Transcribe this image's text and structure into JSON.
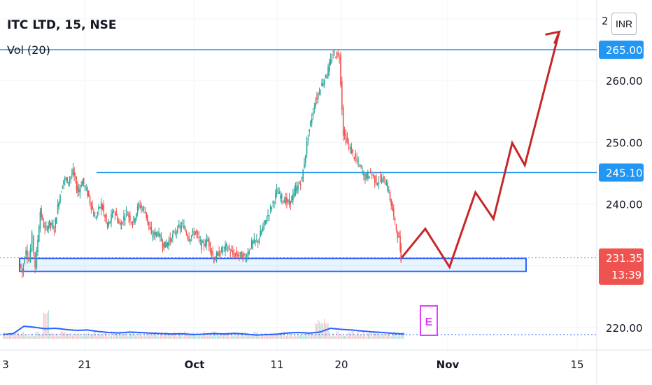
{
  "legend": {
    "symbol": "ITC LTD, 15, NSE",
    "volume": "Vol (20)"
  },
  "currency": "INR",
  "colors": {
    "up": "#26a69a",
    "down": "#ef5350",
    "level": "#2962ff",
    "hline": "#2196f3",
    "projection": "#c62828",
    "last": "#ef5350",
    "earnings": "#e040fb",
    "volume_ma": "#2962ff"
  },
  "chart_data": {
    "type": "candlestick",
    "symbol": "ITC LTD",
    "interval": "15",
    "exchange": "NSE",
    "currency": "INR",
    "ylim": [
      218,
      269
    ],
    "price_ticks": [
      "220.00",
      "240.00",
      "250.00",
      "260.00"
    ],
    "partial_top_tick": "2",
    "x_ticks": [
      "3",
      "21",
      "Oct",
      "11",
      "20",
      "Nov",
      "15"
    ],
    "price_path": [
      [
        0.0,
        230.3
      ],
      [
        0.3,
        228.9
      ],
      [
        0.8,
        232.9
      ],
      [
        1.2,
        230.8
      ],
      [
        1.6,
        234.8
      ],
      [
        2.0,
        229.9
      ],
      [
        2.6,
        238.8
      ],
      [
        3.2,
        235.8
      ],
      [
        3.8,
        236.9
      ],
      [
        4.4,
        236.0
      ],
      [
        5.0,
        240.8
      ],
      [
        5.6,
        244.0
      ],
      [
        6.2,
        243.8
      ],
      [
        6.8,
        245.2
      ],
      [
        7.4,
        242.0
      ],
      [
        8.0,
        243.7
      ],
      [
        8.8,
        241.2
      ],
      [
        9.6,
        237.6
      ],
      [
        10.4,
        240.1
      ],
      [
        11.2,
        236.2
      ],
      [
        12.0,
        239.0
      ],
      [
        12.8,
        236.5
      ],
      [
        13.6,
        238.8
      ],
      [
        14.4,
        236.9
      ],
      [
        15.2,
        239.9
      ],
      [
        16.0,
        238.8
      ],
      [
        16.8,
        234.9
      ],
      [
        17.6,
        235.4
      ],
      [
        18.4,
        233.2
      ],
      [
        19.2,
        234.2
      ],
      [
        20.0,
        235.8
      ],
      [
        20.8,
        236.6
      ],
      [
        21.6,
        234.5
      ],
      [
        22.4,
        235.6
      ],
      [
        23.2,
        233.2
      ],
      [
        24.0,
        234.2
      ],
      [
        24.8,
        231.0
      ],
      [
        25.6,
        232.3
      ],
      [
        26.4,
        233.1
      ],
      [
        27.2,
        231.8
      ],
      [
        28.0,
        231.8
      ],
      [
        28.8,
        231.3
      ],
      [
        29.6,
        233.6
      ],
      [
        30.4,
        234.1
      ],
      [
        31.2,
        236.8
      ],
      [
        32.0,
        239.2
      ],
      [
        32.8,
        242.0
      ],
      [
        33.6,
        240.8
      ],
      [
        34.4,
        240.1
      ],
      [
        35.2,
        242.3
      ],
      [
        36.0,
        244.0
      ],
      [
        36.8,
        251.2
      ],
      [
        37.6,
        256.1
      ],
      [
        38.4,
        259.0
      ],
      [
        39.2,
        261.2
      ],
      [
        40.0,
        264.3
      ],
      [
        40.8,
        264.0
      ],
      [
        41.3,
        251.5
      ],
      [
        42.0,
        249.4
      ],
      [
        42.7,
        247.6
      ],
      [
        43.4,
        246.1
      ],
      [
        44.1,
        244.3
      ],
      [
        44.8,
        245.1
      ],
      [
        45.5,
        243.6
      ],
      [
        46.2,
        244.1
      ],
      [
        46.8,
        243.4
      ],
      [
        47.4,
        240.0
      ],
      [
        47.9,
        236.8
      ],
      [
        48.4,
        234.2
      ],
      [
        48.6,
        231.35
      ]
    ],
    "last_price": "231.35",
    "countdown": "13:39",
    "horizontal_lines": [
      {
        "price": "265.00"
      },
      {
        "price": "245.10"
      }
    ],
    "support_zone": {
      "top": 231.2,
      "bottom": 229.1
    },
    "projection": {
      "day": [
        48.6,
        51.6,
        54.7,
        58.0,
        60.3,
        62.7,
        64.3,
        68.7
      ],
      "price": [
        231.35,
        236.0,
        229.8,
        241.9,
        237.6,
        249.9,
        246.3,
        267.9
      ]
    },
    "earnings_marker": "E",
    "volume": {
      "name": "Vol (20)",
      "ma": [
        0.2,
        0.25,
        0.6,
        0.55,
        0.48,
        0.5,
        0.44,
        0.4,
        0.42,
        0.35,
        0.3,
        0.28,
        0.32,
        0.3,
        0.27,
        0.25,
        0.23,
        0.24,
        0.2,
        0.22,
        0.25,
        0.23,
        0.26,
        0.22,
        0.18,
        0.2,
        0.22,
        0.28,
        0.3,
        0.27,
        0.32,
        0.5,
        0.45,
        0.42,
        0.37,
        0.33,
        0.3,
        0.26,
        0.22
      ]
    }
  }
}
